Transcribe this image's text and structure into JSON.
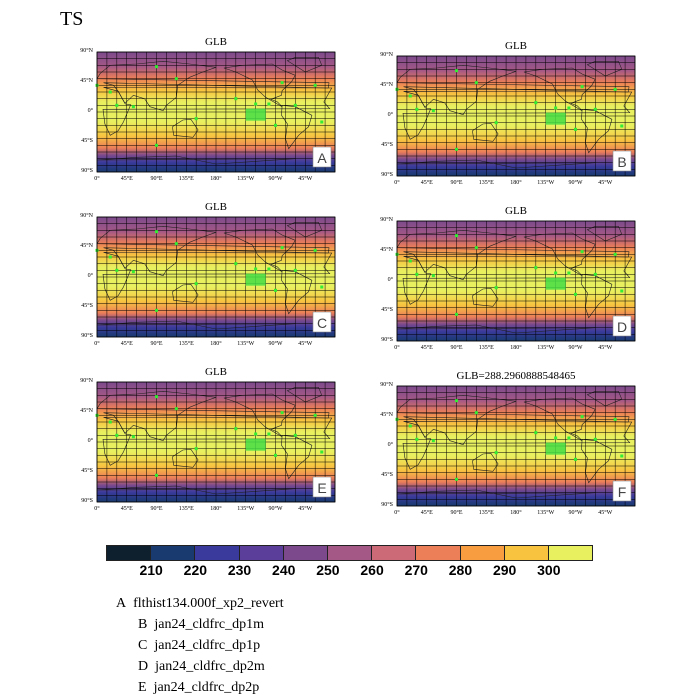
{
  "title": "TS",
  "chart_data": {
    "type": "heatmap",
    "variable": "TS",
    "projection": "cylindrical equidistant global map",
    "lat_ticks": [
      "90°N",
      "45°N",
      "0°",
      "45°S",
      "90°S"
    ],
    "lon_ticks": [
      "0°",
      "45°E",
      "90°E",
      "135°E",
      "180°",
      "135°W",
      "90°W",
      "45°W"
    ],
    "panels": [
      {
        "title": "GLB",
        "label": "A"
      },
      {
        "title": "GLB",
        "label": "B"
      },
      {
        "title": "GLB",
        "label": "C"
      },
      {
        "title": "GLB",
        "label": "D"
      },
      {
        "title": "GLB",
        "label": "E"
      },
      {
        "title": "GLB=288.2960888548465",
        "label": "F"
      }
    ],
    "colorbar": {
      "labels": [
        "210",
        "220",
        "230",
        "240",
        "250",
        "260",
        "270",
        "280",
        "290",
        "300"
      ],
      "colors": [
        "#0e1f2e",
        "#183a6e",
        "#3a3a9c",
        "#5a3e9a",
        "#7c4a8c",
        "#a45886",
        "#cc6a78",
        "#ec7e58",
        "#f89e40",
        "#f8c440",
        "#e8f060"
      ]
    }
  },
  "legend": [
    {
      "letter": "A",
      "name": "flthist134.000f_xp2_revert"
    },
    {
      "letter": "B",
      "name": "jan24_cldfrc_dp1m"
    },
    {
      "letter": "C",
      "name": "jan24_cldfrc_dp1p"
    },
    {
      "letter": "D",
      "name": "jan24_cldfrc_dp2m"
    },
    {
      "letter": "E",
      "name": "jan24_cldfrc_dp2p"
    }
  ]
}
